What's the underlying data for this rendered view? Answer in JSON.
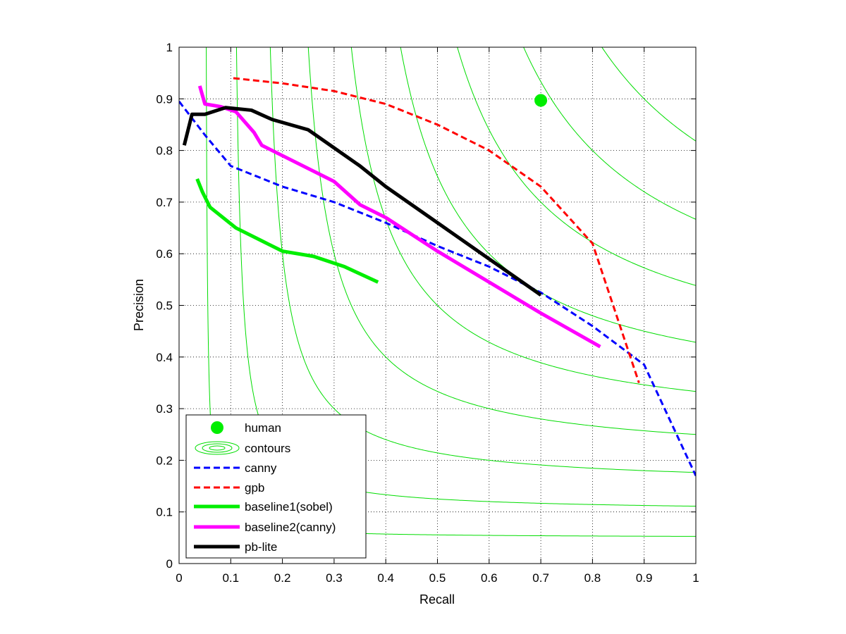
{
  "chart_data": {
    "type": "line",
    "xlabel": "Recall",
    "ylabel": "Precision",
    "xlim": [
      0,
      1
    ],
    "ylim": [
      0,
      1
    ],
    "grid": true,
    "grid_style": "dotted",
    "legend_position": "bottom-left",
    "x_ticks": [
      "0",
      "0.1",
      "0.2",
      "0.3",
      "0.4",
      "0.5",
      "0.6",
      "0.7",
      "0.8",
      "0.9",
      "1"
    ],
    "y_ticks": [
      "0",
      "0.1",
      "0.2",
      "0.3",
      "0.4",
      "0.5",
      "0.6",
      "0.7",
      "0.8",
      "0.9",
      "1"
    ],
    "contours": {
      "name": "contours",
      "color": "#00dd00",
      "f_levels": [
        0.1,
        0.2,
        0.3,
        0.4,
        0.5,
        0.6,
        0.7,
        0.8,
        0.9
      ]
    },
    "human": {
      "name": "human",
      "color": "#00ee00",
      "x": 0.7,
      "y": 0.897
    },
    "series": [
      {
        "name": "canny",
        "color": "#0000ff",
        "style": "dashed",
        "x": [
          0.0,
          0.05,
          0.1,
          0.2,
          0.3,
          0.4,
          0.5,
          0.6,
          0.7,
          0.8,
          0.9,
          1.0
        ],
        "y": [
          0.895,
          0.83,
          0.77,
          0.73,
          0.7,
          0.66,
          0.615,
          0.575,
          0.525,
          0.46,
          0.385,
          0.17
        ]
      },
      {
        "name": "gpb",
        "color": "#ff0000",
        "style": "dashed",
        "x": [
          0.105,
          0.2,
          0.3,
          0.4,
          0.5,
          0.6,
          0.7,
          0.8,
          0.85,
          0.89
        ],
        "y": [
          0.94,
          0.93,
          0.915,
          0.89,
          0.85,
          0.8,
          0.73,
          0.62,
          0.47,
          0.35
        ]
      },
      {
        "name": "baseline1(sobel)",
        "color": "#00ee00",
        "style": "solid-thick",
        "x": [
          0.035,
          0.045,
          0.06,
          0.11,
          0.16,
          0.2,
          0.26,
          0.32,
          0.385
        ],
        "y": [
          0.745,
          0.72,
          0.69,
          0.65,
          0.625,
          0.605,
          0.595,
          0.575,
          0.545
        ]
      },
      {
        "name": "baseline2(canny)",
        "color": "#ff00ff",
        "style": "solid-thick",
        "x": [
          0.04,
          0.05,
          0.08,
          0.11,
          0.145,
          0.16,
          0.2,
          0.3,
          0.35,
          0.4,
          0.5,
          0.6,
          0.7,
          0.815
        ],
        "y": [
          0.925,
          0.89,
          0.885,
          0.875,
          0.835,
          0.81,
          0.79,
          0.74,
          0.695,
          0.67,
          0.605,
          0.545,
          0.485,
          0.42
        ]
      },
      {
        "name": "pb-lite",
        "color": "#000000",
        "style": "solid-thick",
        "x": [
          0.01,
          0.025,
          0.05,
          0.09,
          0.14,
          0.18,
          0.25,
          0.3,
          0.35,
          0.4,
          0.5,
          0.6,
          0.7
        ],
        "y": [
          0.81,
          0.87,
          0.87,
          0.883,
          0.878,
          0.86,
          0.84,
          0.805,
          0.77,
          0.73,
          0.66,
          0.59,
          0.52
        ]
      }
    ]
  }
}
